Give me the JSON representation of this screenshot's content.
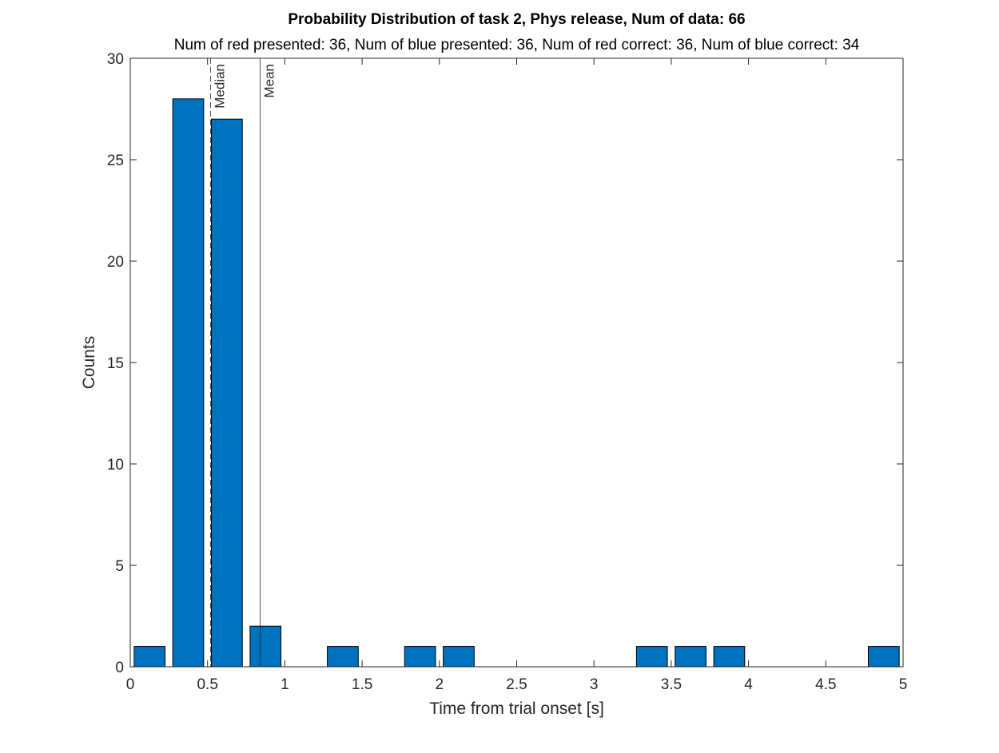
{
  "chart_data": {
    "type": "bar",
    "title": "Probability Distribution of task 2, Phys release, Num of data: 66",
    "subtitle": "Num of red presented: 36, Num of blue presented: 36, Num of red correct: 36, Num of blue correct: 34",
    "xlabel": "Time from trial onset [s]",
    "ylabel": "Counts",
    "xlim": [
      0,
      5
    ],
    "ylim": [
      0,
      30
    ],
    "xticks": [
      0,
      0.5,
      1,
      1.5,
      2,
      2.5,
      3,
      3.5,
      4,
      4.5,
      5
    ],
    "xtick_labels": [
      "0",
      "0.5",
      "1",
      "1.5",
      "2",
      "2.5",
      "3",
      "3.5",
      "4",
      "4.5",
      "5"
    ],
    "yticks": [
      0,
      5,
      10,
      15,
      20,
      25,
      30
    ],
    "ytick_labels": [
      "0",
      "5",
      "10",
      "15",
      "20",
      "25",
      "30"
    ],
    "bin_width": 0.25,
    "bar_width_fraction": 0.8,
    "bin_centers": [
      0.125,
      0.375,
      0.625,
      0.875,
      1.125,
      1.375,
      1.625,
      1.875,
      2.125,
      2.375,
      2.625,
      2.875,
      3.125,
      3.375,
      3.625,
      3.875,
      4.125,
      4.375,
      4.625,
      4.875
    ],
    "values": [
      1,
      28,
      27,
      2,
      0,
      1,
      0,
      1,
      1,
      0,
      0,
      0,
      0,
      1,
      1,
      1,
      0,
      0,
      0,
      1
    ],
    "bar_color": "#0072BD",
    "bar_edge_color": "#000000",
    "grid": false,
    "box": true,
    "reference_lines": [
      {
        "label": "Median",
        "x": 0.52,
        "style": "dashed"
      },
      {
        "label": "Mean",
        "x": 0.84,
        "style": "solid"
      }
    ]
  }
}
